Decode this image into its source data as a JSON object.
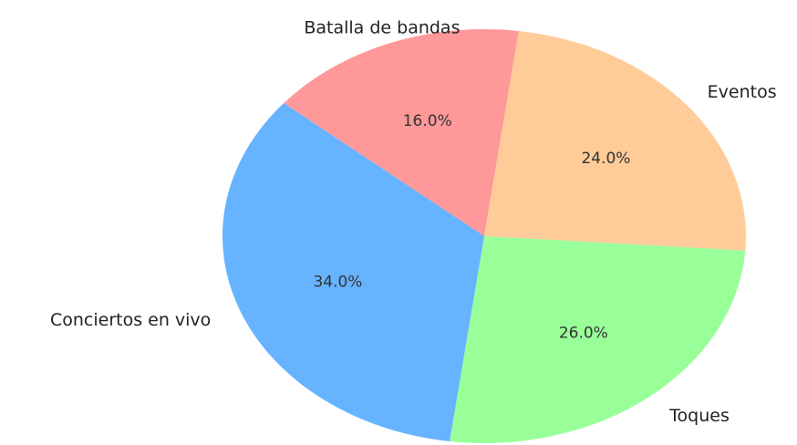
{
  "chart_data": {
    "type": "pie",
    "title": "",
    "slices": [
      {
        "label": "Batalla de bandas",
        "value": 16.0,
        "pct_text": "16.0%",
        "color": "#ff9999"
      },
      {
        "label": "Eventos",
        "value": 24.0,
        "pct_text": "24.0%",
        "color": "#ffcc99"
      },
      {
        "label": "Toques",
        "value": 26.0,
        "pct_text": "26.0%",
        "color": "#99ff99"
      },
      {
        "label": "Conciertos en vivo",
        "value": 34.0,
        "pct_text": "34.0%",
        "color": "#66b3ff"
      }
    ],
    "start_angle_deg": 140,
    "direction": "clockwise",
    "legend": "none"
  }
}
